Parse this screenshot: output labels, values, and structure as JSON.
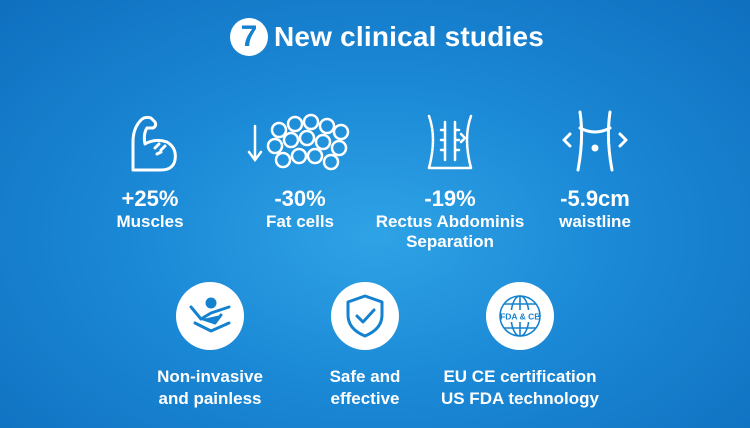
{
  "title": {
    "badge": "7",
    "text": "New clinical studies"
  },
  "stats": [
    {
      "icon": "flexed-arm-icon",
      "value": "+25%",
      "label": "Muscles"
    },
    {
      "icon": "fat-cells-icon",
      "value": "-30%",
      "label": "Fat cells"
    },
    {
      "icon": "abdominal-separation-icon",
      "value": "-19%",
      "label_line1": "Rectus Abdominis",
      "label_line2": "Separation"
    },
    {
      "icon": "waist-icon",
      "value": "-5.9cm",
      "label": "waistline"
    }
  ],
  "features": [
    {
      "icon": "painless-treatment-icon",
      "line1": "Non-invasive",
      "line2": "and painless"
    },
    {
      "icon": "shield-check-icon",
      "line1": "Safe and",
      "line2": "effective"
    },
    {
      "icon": "fda-ce-globe-icon",
      "icon_text": "FDA & CE",
      "line1": "EU CE certification",
      "line2": "US FDA technology"
    }
  ],
  "colors": {
    "background": "#1b89d6",
    "icon_blue": "#1582cf",
    "text": "#ffffff"
  }
}
